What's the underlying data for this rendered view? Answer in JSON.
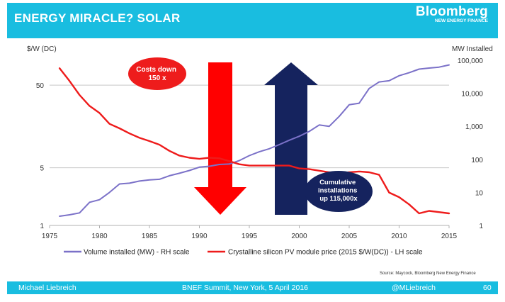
{
  "header": {
    "title": "ENERGY MIRACLE? SOLAR",
    "logo_main": "Bloomberg",
    "logo_sub": "NEW ENERGY FINANCE"
  },
  "footer": {
    "author": "Michael Liebreich",
    "event": "BNEF Summit, New York, 5 April 2016",
    "handle": "@MLiebreich",
    "page": "60"
  },
  "source": "Source: Maycock, Bloomberg New Energy Finance",
  "colors": {
    "header_bg": "#19bde0",
    "volume_line": "#7b71c8",
    "price_line": "#ee1b1b",
    "cost_arrow": "#ff0000",
    "install_arrow": "#15235e"
  },
  "chart_data": {
    "type": "line",
    "xlabel": "",
    "ylabel_left": "$/W (DC)",
    "ylabel_right": "MW Installed",
    "xlim": [
      1975,
      2015
    ],
    "ylim_left": [
      1,
      100
    ],
    "ylim_right": [
      1,
      100000
    ],
    "yscale": "log",
    "grid": "horizontal",
    "legend_position": "bottom",
    "x_ticks": [
      "1975",
      "1980",
      "1985",
      "1990",
      "1995",
      "2000",
      "2005",
      "2010",
      "2015"
    ],
    "y_left_ticks": [
      "50",
      "5",
      "1"
    ],
    "y_right_ticks": [
      "100,000",
      "10,000",
      "1,000",
      "100",
      "10",
      "1"
    ],
    "series": [
      {
        "name": "Volume installed (MW) - RH scale",
        "axis": "right",
        "x": [
          1976,
          1977,
          1978,
          1979,
          1980,
          1981,
          1982,
          1983,
          1984,
          1985,
          1986,
          1987,
          1988,
          1989,
          1990,
          1991,
          1992,
          1993,
          1994,
          1995,
          1996,
          1997,
          1998,
          1999,
          2000,
          2001,
          2002,
          2003,
          2004,
          2005,
          2006,
          2007,
          2008,
          2009,
          2010,
          2011,
          2012,
          2013,
          2014,
          2015
        ],
        "values": [
          1.9,
          2.1,
          2.4,
          5,
          6,
          10,
          18,
          19,
          22,
          24,
          25,
          32,
          38,
          46,
          58,
          62,
          70,
          72,
          92,
          130,
          170,
          210,
          280,
          380,
          500,
          700,
          1100,
          1000,
          2000,
          4500,
          5000,
          14000,
          22000,
          24000,
          34000,
          42000,
          54000,
          58000,
          62000,
          72000
        ]
      },
      {
        "name": "Crystalline silicon PV module price (2015 $/W(DC)) - LH scale",
        "axis": "left",
        "x": [
          1976,
          1977,
          1978,
          1979,
          1980,
          1981,
          1982,
          1983,
          1984,
          1985,
          1986,
          1987,
          1988,
          1989,
          1990,
          1991,
          1992,
          1993,
          1994,
          1995,
          1996,
          1997,
          1998,
          1999,
          2000,
          2001,
          2002,
          2003,
          2004,
          2005,
          2006,
          2007,
          2008,
          2009,
          2010,
          2011,
          2012,
          2013,
          2014,
          2015
        ],
        "values": [
          80,
          56,
          38,
          28,
          23,
          17,
          15,
          13,
          11.5,
          10.5,
          9.5,
          8,
          7,
          6.6,
          6.4,
          6.6,
          6.5,
          6,
          5.5,
          5.3,
          5.3,
          5.3,
          5.3,
          5.3,
          4.9,
          4.8,
          4.6,
          4.4,
          4.3,
          4.4,
          4.5,
          4.4,
          4.1,
          2.5,
          2.2,
          1.8,
          1.4,
          1.5,
          1.45,
          1.4
        ]
      }
    ],
    "annotations": [
      {
        "text": [
          "Costs down",
          "150 x"
        ],
        "arrow": "down",
        "color": "#ff0000"
      },
      {
        "text": [
          "Cumulative",
          "installations",
          "up 115,000x"
        ],
        "arrow": "up",
        "color": "#15235e"
      }
    ]
  }
}
